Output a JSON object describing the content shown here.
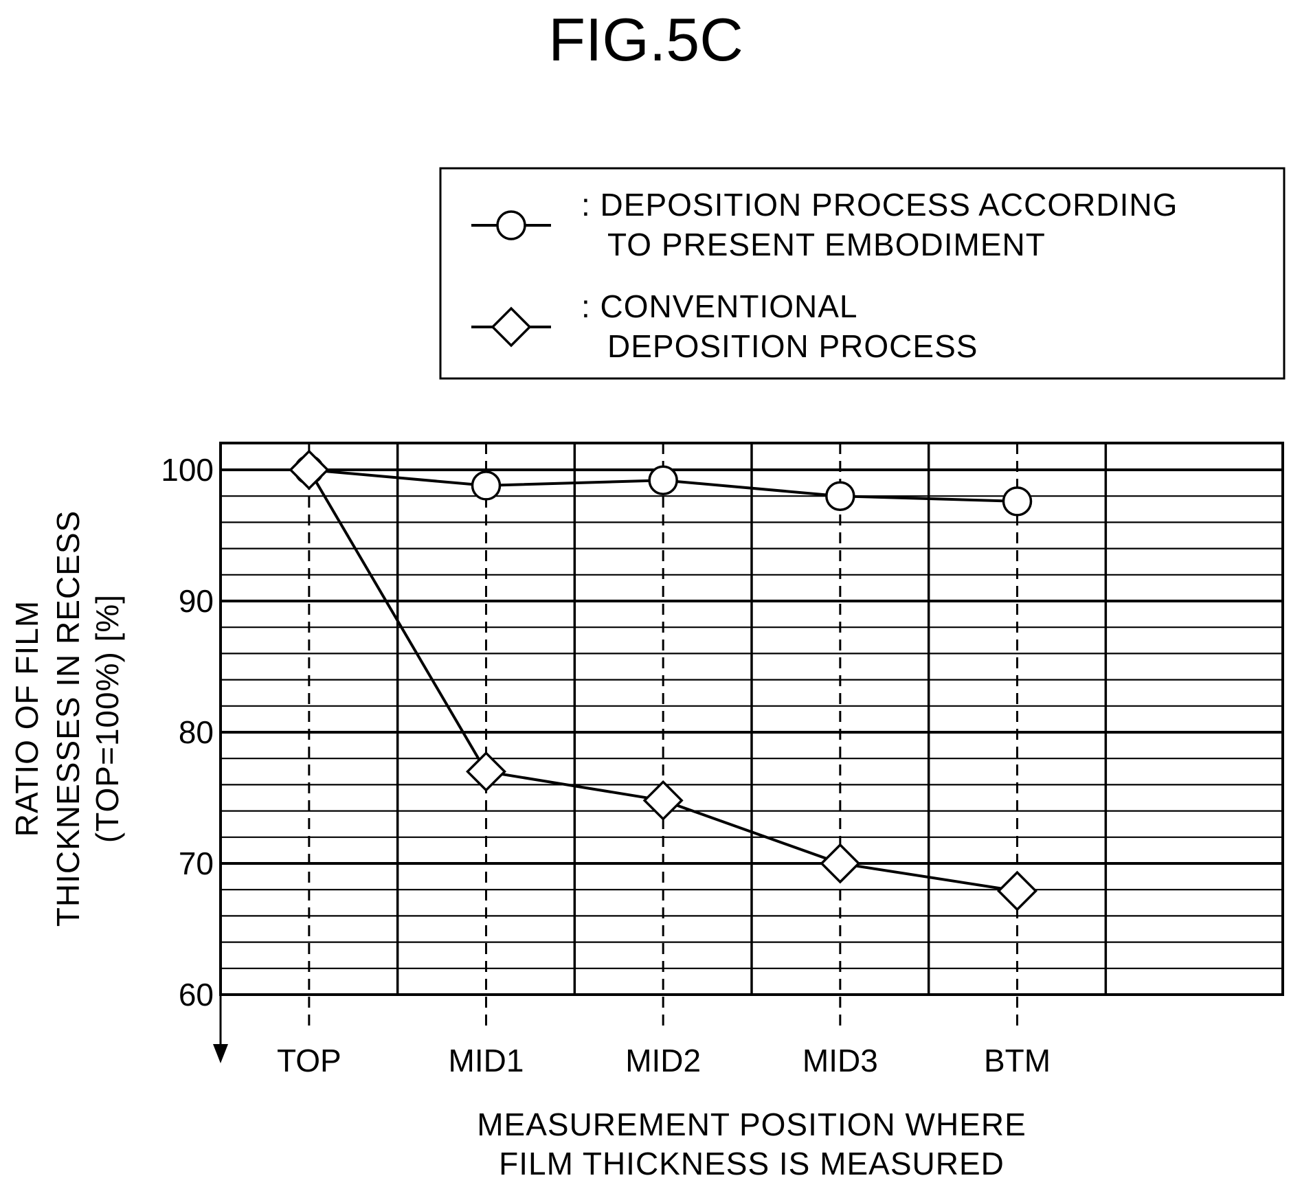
{
  "figure": {
    "label": "FIG.5C"
  },
  "chart_data": {
    "type": "line",
    "title": "FIG.5C",
    "categories": [
      "TOP",
      "MID1",
      "MID2",
      "MID3",
      "BTM"
    ],
    "series": [
      {
        "name": "DEPOSITION PROCESS ACCORDING TO PRESENT EMBODIMENT",
        "legend_lines": [
          ": DEPOSITION PROCESS ACCORDING",
          "TO PRESENT EMBODIMENT"
        ],
        "marker": "circle",
        "values": [
          100,
          98.8,
          99.2,
          98.0,
          97.6
        ]
      },
      {
        "name": "CONVENTIONAL DEPOSITION PROCESS",
        "legend_lines": [
          ": CONVENTIONAL",
          "DEPOSITION PROCESS"
        ],
        "marker": "diamond",
        "values": [
          100,
          77.0,
          74.8,
          70.0,
          67.9
        ]
      }
    ],
    "xlabel_lines": [
      "MEASUREMENT POSITION WHERE",
      "FILM THICKNESS IS MEASURED"
    ],
    "ylabel_lines": [
      "RATIO OF FILM",
      "THICKNESSES IN RECESS",
      "(TOP=100%) [%]"
    ],
    "ylim": [
      60,
      102
    ],
    "yticks": [
      60,
      70,
      80,
      90,
      100
    ],
    "minor_grid_step": 2,
    "grid": true,
    "legend_position": "top-right"
  }
}
